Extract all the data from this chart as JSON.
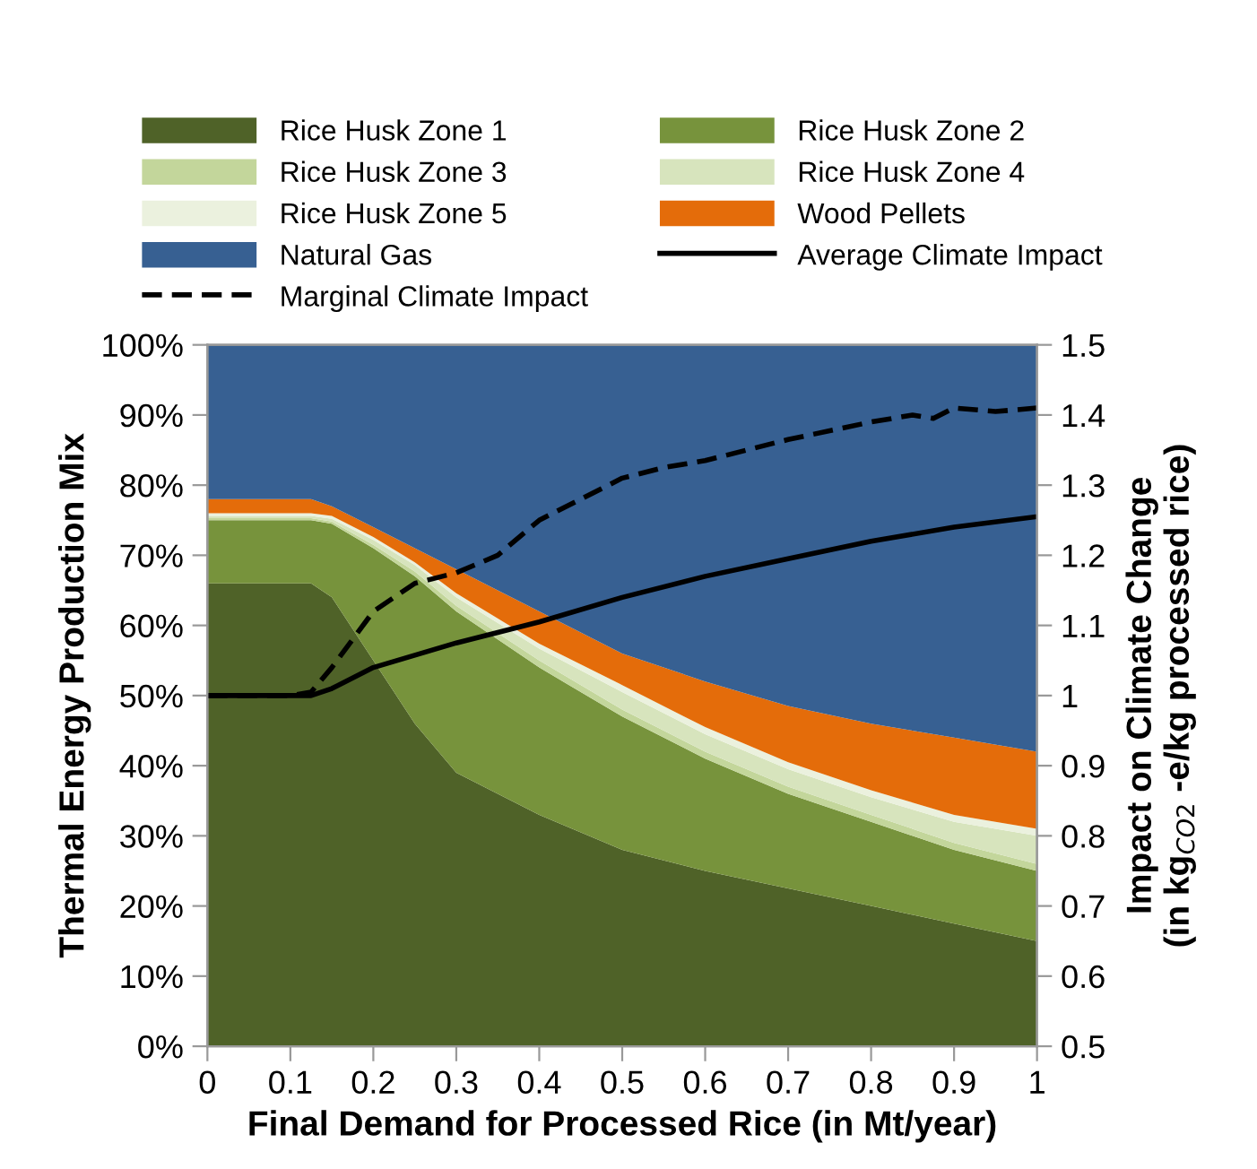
{
  "chart_data": {
    "type": "area",
    "stacked": true,
    "xlabel": "Final Demand for Processed Rice (in Mt/year)",
    "ylabel": "Thermal Energy Production Mix",
    "y2label": "Impact on Climate Change\n(in kg$_{CO2}$ -e/kg processed rice)",
    "x": [
      0,
      0.1,
      0.125,
      0.15,
      0.2,
      0.25,
      0.3,
      0.4,
      0.5,
      0.6,
      0.7,
      0.8,
      0.9,
      1
    ],
    "xlim": [
      0,
      1
    ],
    "xticks": [
      0,
      0.1,
      0.2,
      0.3,
      0.4,
      0.5,
      0.6,
      0.7,
      0.8,
      0.9,
      1
    ],
    "ylim": [
      0,
      100
    ],
    "yticks": [
      {
        "value": 0,
        "label": "0%"
      },
      {
        "value": 10,
        "label": "10%"
      },
      {
        "value": 20,
        "label": "20%"
      },
      {
        "value": 30,
        "label": "30%"
      },
      {
        "value": 40,
        "label": "40%"
      },
      {
        "value": 50,
        "label": "50%"
      },
      {
        "value": 60,
        "label": "60%"
      },
      {
        "value": 70,
        "label": "70%"
      },
      {
        "value": 80,
        "label": "80%"
      },
      {
        "value": 90,
        "label": "90%"
      },
      {
        "value": 100,
        "label": "100%"
      }
    ],
    "y2lim": [
      0.5,
      1.5
    ],
    "y2ticks": [
      0.5,
      0.6,
      0.7,
      0.8,
      0.9,
      1,
      1.1,
      1.2,
      1.3,
      1.4,
      1.5
    ],
    "legend": "top",
    "grid": false,
    "series": [
      {
        "name": "Rice Husk Zone 1",
        "color": "#4f6228",
        "values": [
          66,
          66,
          66,
          64,
          55,
          46,
          39,
          33,
          28,
          25,
          22.5,
          20,
          17.5,
          15
        ]
      },
      {
        "name": "Rice Husk Zone 2",
        "color": "#77933c",
        "values": [
          9,
          9,
          9,
          10.5,
          16,
          21,
          23,
          21,
          19,
          16,
          13.5,
          12,
          10.5,
          10
        ]
      },
      {
        "name": "Rice Husk Zone 3",
        "color": "#c3d69b",
        "values": [
          0.3,
          0.3,
          0.3,
          0.3,
          0.5,
          0.7,
          0.8,
          1,
          1,
          1,
          1,
          1,
          1,
          1
        ]
      },
      {
        "name": "Rice Husk Zone 4",
        "color": "#d7e4bd",
        "values": [
          0.3,
          0.3,
          0.3,
          0.4,
          0.7,
          0.9,
          1.2,
          1.7,
          2.5,
          2.5,
          2.5,
          2.5,
          3,
          4
        ]
      },
      {
        "name": "Rice Husk Zone 5",
        "color": "#ebf1de",
        "values": [
          0.4,
          0.4,
          0.4,
          0.4,
          0.4,
          0.4,
          0.6,
          0.7,
          1,
          1,
          1,
          1,
          1,
          1
        ]
      },
      {
        "name": "Wood Pellets",
        "color": "#e46c0a",
        "values": [
          2,
          2,
          2,
          1.4,
          1.4,
          2,
          3.4,
          4.6,
          4.5,
          6.5,
          8,
          9.5,
          11,
          11
        ]
      },
      {
        "name": "Natural Gas",
        "color": "#376092",
        "values": [
          22,
          22,
          22,
          23,
          26,
          29,
          32,
          38,
          44,
          48,
          51.5,
          54,
          56,
          58
        ]
      },
      {
        "name": "Average Climate Impact",
        "type": "line",
        "axis": "y2",
        "color": "#000000",
        "line_style": "solid",
        "x": [
          0,
          0.1,
          0.125,
          0.15,
          0.2,
          0.3,
          0.4,
          0.5,
          0.6,
          0.7,
          0.8,
          0.9,
          1
        ],
        "values": [
          1.0,
          1.0,
          1.0,
          1.01,
          1.04,
          1.075,
          1.105,
          1.14,
          1.17,
          1.195,
          1.22,
          1.24,
          1.255
        ]
      },
      {
        "name": "Marginal Climate Impact",
        "type": "line",
        "axis": "y2",
        "color": "#000000",
        "line_style": "dashed",
        "x": [
          0,
          0.1,
          0.125,
          0.15,
          0.2,
          0.25,
          0.3,
          0.35,
          0.4,
          0.45,
          0.5,
          0.55,
          0.6,
          0.7,
          0.8,
          0.85,
          0.875,
          0.9,
          0.95,
          1
        ],
        "values": [
          1.0,
          1.0,
          1.005,
          1.04,
          1.12,
          1.16,
          1.175,
          1.2,
          1.25,
          1.28,
          1.31,
          1.325,
          1.335,
          1.365,
          1.39,
          1.4,
          1.395,
          1.41,
          1.405,
          1.41
        ]
      }
    ]
  }
}
